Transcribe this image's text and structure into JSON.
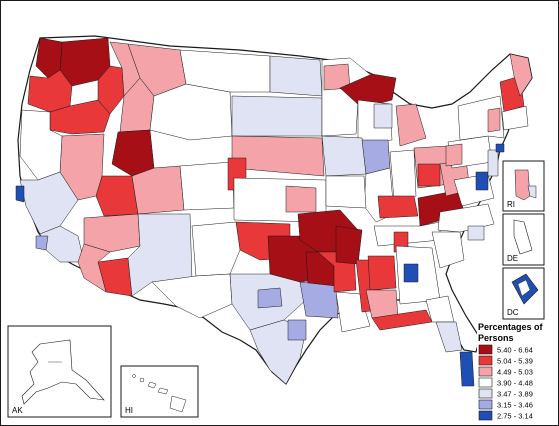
{
  "legend": {
    "title_line1": "Percentages of",
    "title_line2": "Persons",
    "classes": [
      {
        "label": "5.40 - 6.64",
        "color": "#a50f15"
      },
      {
        "label": "5.04 - 5.39",
        "color": "#e8383a"
      },
      {
        "label": "4.49 - 5.03",
        "color": "#f4a3a8"
      },
      {
        "label": "3.90 - 4.48",
        "color": "#ffffff"
      },
      {
        "label": "3.47 - 3.89",
        "color": "#dfe3f4"
      },
      {
        "label": "3.15 - 3.46",
        "color": "#a6abe3"
      },
      {
        "label": "2.75 - 3.14",
        "color": "#1f4fb4"
      }
    ]
  },
  "insets": {
    "ak": "AK",
    "hi": "HI",
    "ri": "RI",
    "de": "DE",
    "dc": "DC"
  },
  "colors": {
    "background": "#ffffff",
    "outline": "#1a1a1a"
  }
}
